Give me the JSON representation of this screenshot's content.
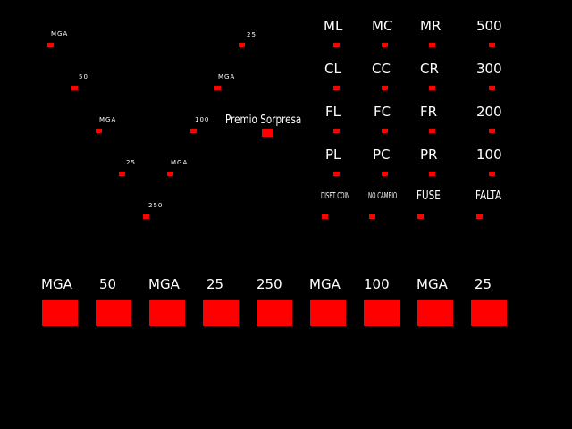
{
  "colors": {
    "background": "#000000",
    "led": "#ff0000",
    "text": "#ffffff"
  },
  "trail": {
    "labels": [
      "MGA",
      "50",
      "MGA",
      "25",
      "250",
      "MGA",
      "100",
      "MGA",
      "25"
    ]
  },
  "premio": {
    "label": "Premio Sorpresa"
  },
  "grid": {
    "row1": [
      "ML",
      "MC",
      "MR",
      "500"
    ],
    "row2": [
      "CL",
      "CC",
      "CR",
      "300"
    ],
    "row3": [
      "FL",
      "FC",
      "FR",
      "200"
    ],
    "row4": [
      "PL",
      "PC",
      "PR",
      "100"
    ],
    "row5": [
      "DISBT COIN",
      "NO CAMBIO",
      "FUSE",
      "FALTA"
    ]
  },
  "bottom": {
    "labels": [
      "MGA",
      "50",
      "MGA",
      "25",
      "250",
      "MGA",
      "100",
      "MGA",
      "25"
    ]
  }
}
